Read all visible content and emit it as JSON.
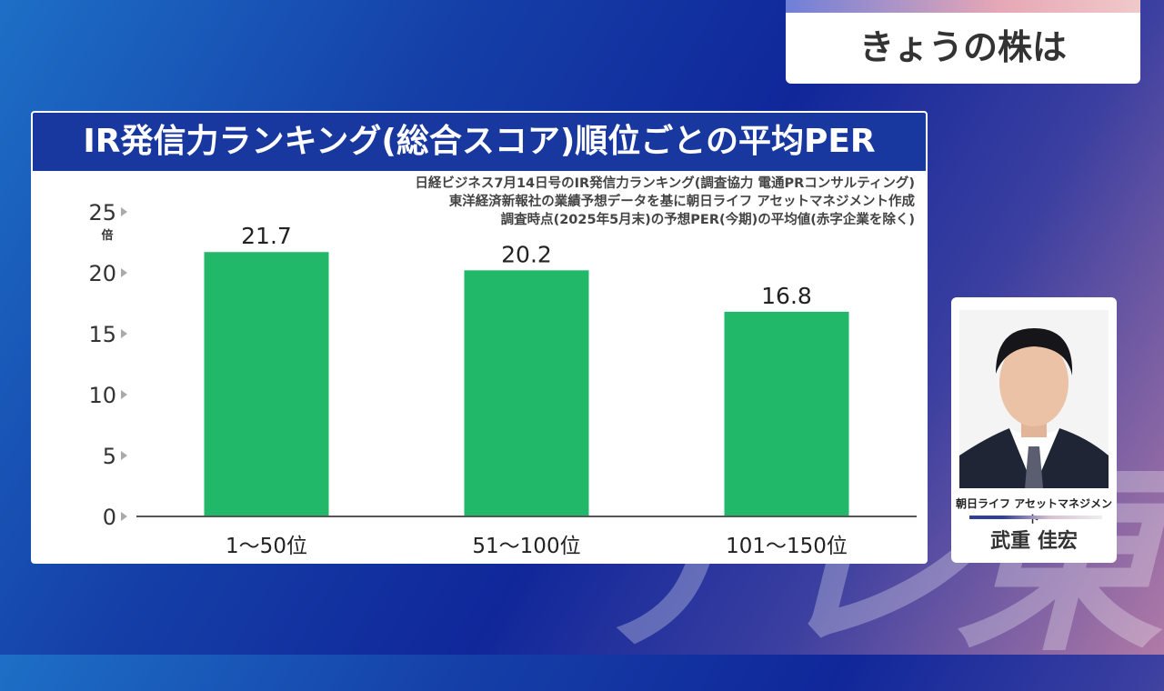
{
  "header": {
    "program_title": "きょうの株は"
  },
  "logo": {
    "watermark": "テレ東"
  },
  "chart_data": {
    "type": "bar",
    "title": "IR発信力ランキング(総合スコア)順位ごとの平均PER",
    "source_lines": [
      "日経ビジネス7月14日号のIR発信力ランキング(調査協力 電通PRコンサルティング)",
      "東洋経済新報社の業績予想データを基に朝日ライフ アセットマネジメント作成",
      "調査時点(2025年5月末)の予想PER(今期)の平均値(赤字企業を除く)"
    ],
    "categories": [
      "1〜50位",
      "51〜100位",
      "101〜150位"
    ],
    "values": [
      21.7,
      20.2,
      16.8
    ],
    "value_labels": [
      "21.7",
      "20.2",
      "16.8"
    ],
    "ylabel": "倍",
    "yticks": [
      "0",
      "5",
      "10",
      "15",
      "20",
      "25"
    ],
    "ylim": [
      0,
      25
    ],
    "bar_color": "#22b86a"
  },
  "guest": {
    "organization": "朝日ライフ アセットマネジメント",
    "name": "武重 佳宏"
  }
}
